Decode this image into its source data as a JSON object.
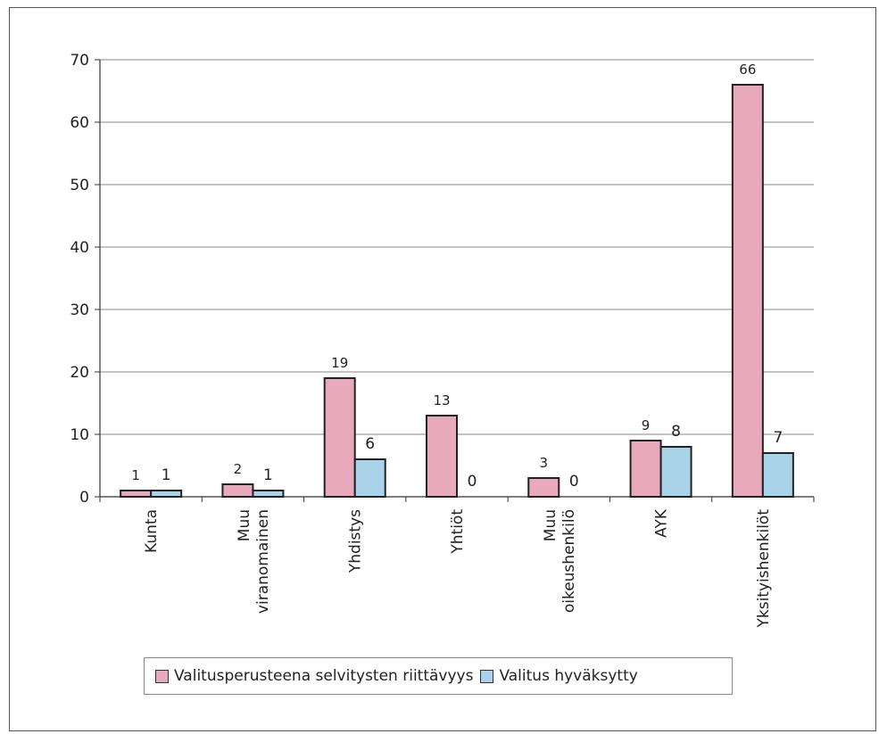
{
  "chart_data": {
    "type": "bar",
    "title": "",
    "xlabel": "",
    "ylabel": "",
    "ylim": [
      0,
      70
    ],
    "yticks": [
      0,
      10,
      20,
      30,
      40,
      50,
      60,
      70
    ],
    "grid": true,
    "legend_position": "bottom",
    "categories": [
      [
        "Kunta"
      ],
      [
        "Muu",
        "viranomainen"
      ],
      [
        "Yhdistys"
      ],
      [
        "Yhtiöt"
      ],
      [
        "Muu",
        "oikeushenkilö"
      ],
      [
        "AYK"
      ],
      [
        "Yksityishenkilöt"
      ]
    ],
    "series": [
      {
        "name": "Valitusperusteena selvitysten riittävyys",
        "color": "#e8a9bc",
        "values": [
          1,
          2,
          19,
          13,
          3,
          9,
          66
        ]
      },
      {
        "name": "Valitus hyväksytty",
        "color": "#a8d3e8",
        "values": [
          1,
          1,
          6,
          0,
          0,
          8,
          7
        ]
      }
    ]
  }
}
